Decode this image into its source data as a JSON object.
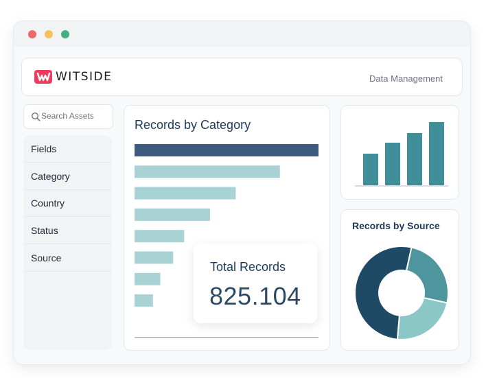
{
  "window": {
    "controls": [
      {
        "name": "close",
        "color": "#ee6a6a"
      },
      {
        "name": "minimize",
        "color": "#f5c25a"
      },
      {
        "name": "maximize",
        "color": "#3fb27f"
      }
    ]
  },
  "header": {
    "logo_text": "WITSIDE",
    "logo_icon": "witside-w-logo",
    "title": "Data Management"
  },
  "sidebar": {
    "search_placeholder": "Search Assets",
    "items": [
      {
        "label": "Fields"
      },
      {
        "label": "Category"
      },
      {
        "label": "Country"
      },
      {
        "label": "Status"
      },
      {
        "label": "Source"
      }
    ]
  },
  "category_card": {
    "title": "Records by Category"
  },
  "total_card": {
    "label": "Total Records",
    "value": "825.104"
  },
  "source_card": {
    "title": "Records by Source"
  },
  "chart_data": [
    {
      "type": "bar",
      "orientation": "horizontal",
      "title": "Records by Category",
      "values": [
        100,
        79,
        55,
        41,
        27,
        21,
        14,
        10
      ],
      "colors": {
        "highlight": "#3e5a7e",
        "default": "#a8d2d4"
      }
    },
    {
      "type": "bar",
      "orientation": "vertical",
      "title": "",
      "values": [
        46,
        62,
        76,
        92
      ],
      "color": "#3f8e98"
    },
    {
      "type": "pie",
      "donut": true,
      "title": "Records by Source",
      "values": [
        52,
        25,
        23
      ],
      "colors": [
        "#1e4a66",
        "#4f959e",
        "#8cc7c7"
      ]
    }
  ]
}
